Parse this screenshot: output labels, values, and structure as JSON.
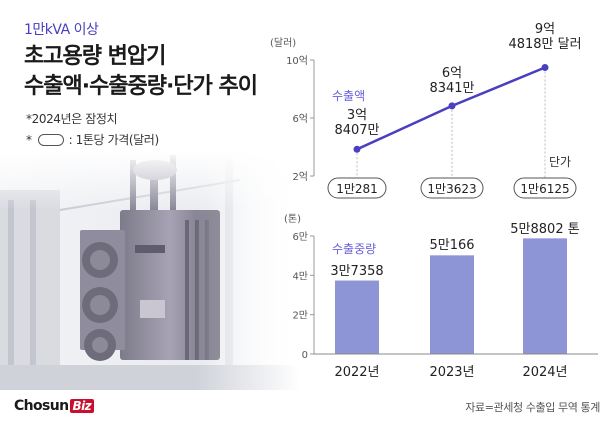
{
  "header": {
    "subtitle": "1만kVA 이상",
    "title_line1": "초고용량 변압기",
    "title_line2": "수출액·수출중량·단가 추이"
  },
  "notes": {
    "provisional": "*2024년은 잠정치",
    "legend_prefix": "*",
    "legend_text": ": 1톤당 가격(달러)"
  },
  "brand": {
    "name": "Chosun",
    "suffix": "Biz",
    "accent": "#c8102e"
  },
  "source": "자료=관세청 수출입 무역 통계",
  "colors": {
    "line": "#4a3fc1",
    "bar": "#8e95d6",
    "series_label": "#6a5fd8"
  },
  "chart_data": [
    {
      "type": "line",
      "title": "",
      "unit_label": "(달러)",
      "series_label": "수출액",
      "x": [
        "2022년",
        "2023년",
        "2024년"
      ],
      "values": [
        384070000,
        683410000,
        948180000
      ],
      "value_labels": [
        [
          "3억",
          "8407만"
        ],
        [
          "6억",
          "8341만"
        ],
        [
          "9억",
          "4818만 달러"
        ]
      ],
      "ylim_ticks": [
        "2억",
        "6억",
        "10억"
      ],
      "ylim": [
        200000000,
        1000000000
      ],
      "unit_price_label": "단가",
      "unit_prices": [
        "1만281",
        "1만3623",
        "1만6125"
      ],
      "unit_price_values": [
        10281,
        13623,
        16125
      ]
    },
    {
      "type": "bar",
      "title": "",
      "unit_label": "(톤)",
      "series_label": "수출중량",
      "categories": [
        "2022년",
        "2023년",
        "2024년"
      ],
      "values": [
        37358,
        50166,
        58802
      ],
      "value_labels": [
        "3만7358",
        "5만166",
        "5만8802 톤"
      ],
      "yticks": [
        "0",
        "2만",
        "4만",
        "6만"
      ],
      "ylim": [
        0,
        60000
      ]
    }
  ]
}
